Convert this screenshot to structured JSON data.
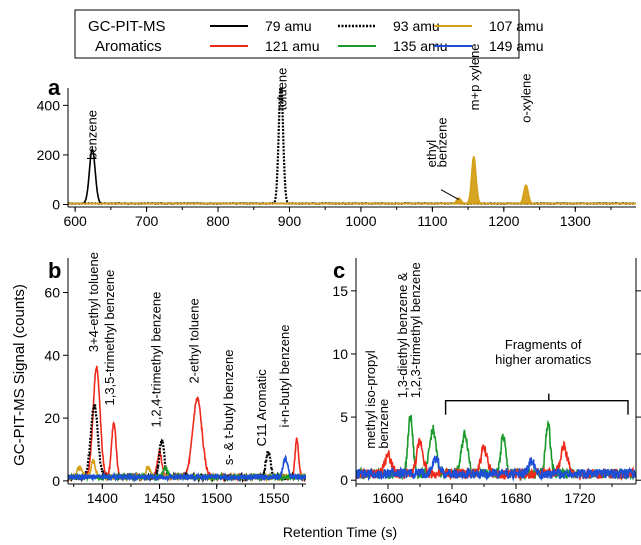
{
  "legend": {
    "title_line1": "GC-PIT-MS",
    "title_line2": "Aromatics",
    "placement": "top",
    "entries": [
      {
        "label": "79 amu",
        "color": "#000000",
        "dashed": false
      },
      {
        "label": "93 amu",
        "color": "#000000",
        "dashed": true
      },
      {
        "label": "107 amu",
        "color": "#d4a017",
        "dashed": false
      },
      {
        "label": "121 amu",
        "color": "#ee2a1b",
        "dashed": false
      },
      {
        "label": "135 amu",
        "color": "#1b9a2c",
        "dashed": false
      },
      {
        "label": "149 amu",
        "color": "#1c4fd6",
        "dashed": false
      }
    ]
  },
  "axes_text": {
    "y_label": "GC-PIT-MS Signal (counts)",
    "x_label": "Retention Time (s)"
  },
  "chart_data": [
    {
      "panel_label": "a",
      "type": "line",
      "xlim": [
        590,
        1385
      ],
      "ylim": [
        -10,
        470
      ],
      "x_ticks": [
        600,
        700,
        800,
        900,
        1000,
        1100,
        1200,
        1300
      ],
      "y_ticks": [
        0,
        200,
        400
      ],
      "grid": false,
      "series": [
        {
          "name": "79 amu",
          "color": "#000000",
          "dashed": false,
          "peaks": [
            {
              "x": 624,
              "height": 220,
              "width": 4
            }
          ]
        },
        {
          "name": "93 amu",
          "color": "#000000",
          "dashed": true,
          "peaks": [
            {
              "x": 888,
              "height": 500,
              "width": 3
            }
          ]
        },
        {
          "name": "107 amu",
          "color": "#d4a017",
          "dashed": false,
          "filled": true,
          "peaks": [
            {
              "x": 1137,
              "height": 22,
              "width": 3
            },
            {
              "x": 1158,
              "height": 190,
              "width": 3
            },
            {
              "x": 1231,
              "height": 75,
              "width": 3
            }
          ]
        }
      ],
      "annotations": [
        {
          "text": "benzene",
          "x": 630,
          "y": 180
        },
        {
          "text": "toluene",
          "x": 896,
          "y": 380
        },
        {
          "text": "ethyl",
          "x": 1105,
          "y": 150
        },
        {
          "text": "benzene",
          "x": 1120,
          "y": 150
        },
        {
          "text": "m+p xylene",
          "x": 1165,
          "y": 380
        },
        {
          "text": "o-xylene",
          "x": 1237,
          "y": 330
        }
      ]
    },
    {
      "panel_label": "b",
      "type": "line",
      "xlim": [
        1370,
        1578
      ],
      "ylim": [
        -1,
        71
      ],
      "x_ticks": [
        1400,
        1450,
        1500,
        1550
      ],
      "y_ticks": [
        0,
        20,
        40,
        60
      ],
      "grid": false,
      "series": [
        {
          "name": "121 amu",
          "color": "#ee2a1b",
          "dashed": false,
          "peaks": [
            {
              "x": 1395,
              "height": 35,
              "width": 3
            },
            {
              "x": 1410,
              "height": 17,
              "width": 2
            },
            {
              "x": 1450,
              "height": 8,
              "width": 2
            },
            {
              "x": 1483,
              "height": 25,
              "width": 4
            },
            {
              "x": 1570,
              "height": 12,
              "width": 1.5
            }
          ]
        },
        {
          "name": "93 amu",
          "color": "#000000",
          "dashed": true,
          "peaks": [
            {
              "x": 1393,
              "height": 23,
              "width": 3
            },
            {
              "x": 1452,
              "height": 12,
              "width": 2
            },
            {
              "x": 1545,
              "height": 8,
              "width": 2
            }
          ]
        },
        {
          "name": "107 amu",
          "color": "#d4a017",
          "dashed": false,
          "peaks": [
            {
              "x": 1380,
              "height": 3,
              "width": 2
            },
            {
              "x": 1392,
              "height": 5,
              "width": 2
            },
            {
              "x": 1440,
              "height": 3,
              "width": 2
            }
          ]
        },
        {
          "name": "135 amu",
          "color": "#1b9a2c",
          "dashed": false,
          "peaks": [
            {
              "x": 1455,
              "height": 3,
              "width": 2
            }
          ]
        },
        {
          "name": "149 amu",
          "color": "#1c4fd6",
          "dashed": false,
          "peaks": [
            {
              "x": 1560,
              "height": 6,
              "width": 2
            }
          ]
        }
      ],
      "annotations": [
        {
          "text": "3+4-ethyl toluene",
          "x": 1396,
          "y": 41
        },
        {
          "text": "1,3,5-trimethyl benzene",
          "x": 1410,
          "y": 24
        },
        {
          "text": "1,2,4-trimethyl benzene",
          "x": 1451,
          "y": 17
        },
        {
          "text": "2-ethyl toluene",
          "x": 1484,
          "y": 31
        },
        {
          "text": "s- & t-butyl benzene",
          "x": 1514,
          "y": 5
        },
        {
          "text": "C11 Aromatic",
          "x": 1543,
          "y": 11
        },
        {
          "text": "i+n-butyl benzene",
          "x": 1563,
          "y": 17
        }
      ]
    },
    {
      "panel_label": "c",
      "type": "line",
      "xlim": [
        1580,
        1755
      ],
      "ylim": [
        -0.3,
        17.6
      ],
      "x_ticks": [
        1600,
        1640,
        1680,
        1720
      ],
      "y_ticks": [
        0,
        5,
        10,
        15
      ],
      "grid": false,
      "series": [
        {
          "name": "135 amu",
          "color": "#1b9a2c",
          "dashed": false,
          "peaks": [
            {
              "x": 1614,
              "height": 4.5,
              "width": 1.5
            },
            {
              "x": 1628,
              "height": 3.5,
              "width": 2
            },
            {
              "x": 1648,
              "height": 3.2,
              "width": 2
            },
            {
              "x": 1672,
              "height": 3.0,
              "width": 1.5
            },
            {
              "x": 1700,
              "height": 4.0,
              "width": 1.5
            }
          ]
        },
        {
          "name": "121 amu",
          "color": "#ee2a1b",
          "dashed": false,
          "peaks": [
            {
              "x": 1600,
              "height": 1.5,
              "width": 2
            },
            {
              "x": 1620,
              "height": 2.5,
              "width": 2
            },
            {
              "x": 1660,
              "height": 2.0,
              "width": 2
            },
            {
              "x": 1710,
              "height": 2.2,
              "width": 2
            }
          ]
        },
        {
          "name": "149 amu",
          "color": "#1c4fd6",
          "dashed": false,
          "peaks": [
            {
              "x": 1630,
              "height": 1.2,
              "width": 2
            },
            {
              "x": 1690,
              "height": 1.0,
              "width": 2
            }
          ]
        }
      ],
      "annotations": [
        {
          "text": "methyl iso-propyl",
          "x": 1592,
          "y": 2.5
        },
        {
          "text": "benzene",
          "x": 1600,
          "y": 2.5
        },
        {
          "text": "1,3-diethyl benzene &",
          "x": 1612,
          "y": 6.5
        },
        {
          "text": "1,2,3-trimethyl benzene",
          "x": 1620,
          "y": 6.5
        },
        {
          "text": "Fragments of",
          "x": 1697,
          "y": 10.4
        },
        {
          "text": "higher aromatics",
          "x": 1697,
          "y": 9.2
        }
      ],
      "bracket": {
        "x_start": 1636,
        "x_end": 1750,
        "y": 6.3
      }
    }
  ]
}
